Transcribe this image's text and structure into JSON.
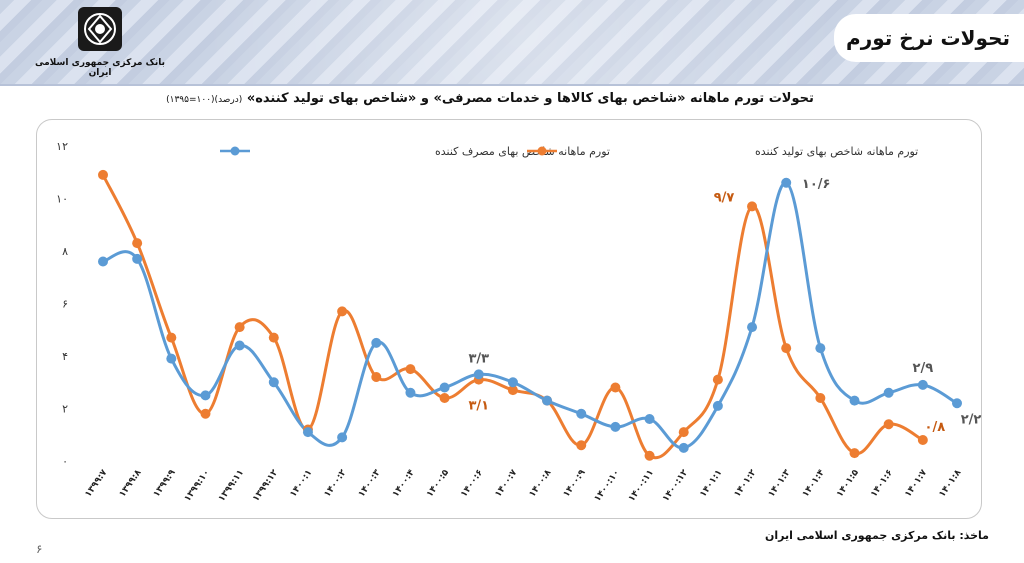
{
  "header": {
    "slide_title": "تحولات نرخ تورم",
    "bank_name": "بانک مرکزی جمهوری اسلامی ایران"
  },
  "chart_heading": {
    "main": "تحولات تورم ماهانه «شاخص بهای کالاها و خدمات مصرفی» و «شاخص بهای تولید کننده»",
    "note": "(درصد)(۱۰۰=۱۳۹۵)"
  },
  "footer": {
    "source": "ماخذ: بانک مرکزی جمهوری اسلامی ایران",
    "page_number": "۶"
  },
  "colors": {
    "cpi": "#5b9bd5",
    "ppi": "#ed7d31",
    "cpi_label": "#555555",
    "ppi_label": "#c55a11"
  },
  "chart_data": {
    "type": "line",
    "categories": [
      "۱۳۹۹:۷",
      "۱۳۹۹:۸",
      "۱۳۹۹:۹",
      "۱۳۹۹:۱۰",
      "۱۳۹۹:۱۱",
      "۱۳۹۹:۱۲",
      "۱۴۰۰:۱",
      "۱۴۰۰:۲",
      "۱۴۰۰:۳",
      "۱۴۰۰:۴",
      "۱۴۰۰:۵",
      "۱۴۰۰:۶",
      "۱۴۰۰:۷",
      "۱۴۰۰:۸",
      "۱۴۰۰:۹",
      "۱۴۰۰:۱۰",
      "۱۴۰۰:۱۱",
      "۱۴۰۰:۱۲",
      "۱۴۰۱:۱",
      "۱۴۰۱:۲",
      "۱۴۰۱:۳",
      "۱۴۰۱:۴",
      "۱۴۰۱:۵",
      "۱۴۰۱:۶",
      "۱۴۰۱:۷",
      "۱۴۰۱:۸"
    ],
    "series": [
      {
        "name": "تورم ماهانه شاخص بهای مصرف کننده",
        "values": [
          7.6,
          7.7,
          3.9,
          2.5,
          4.4,
          3.0,
          1.1,
          0.9,
          4.5,
          2.6,
          2.8,
          3.3,
          3.0,
          2.3,
          1.8,
          1.3,
          1.6,
          0.5,
          2.1,
          5.1,
          10.6,
          4.3,
          2.3,
          2.6,
          2.9,
          2.2
        ]
      },
      {
        "name": "تورم ماهانه شاخص بهای تولید کننده",
        "values": [
          10.9,
          8.3,
          4.7,
          1.8,
          5.1,
          4.7,
          1.2,
          5.7,
          3.2,
          3.5,
          2.4,
          3.1,
          2.7,
          2.3,
          0.6,
          2.8,
          0.2,
          1.1,
          3.1,
          9.7,
          4.3,
          2.4,
          0.3,
          1.4,
          0.8,
          null
        ]
      }
    ],
    "y_ticks": [
      "۰",
      "۲",
      "۴",
      "۶",
      "۸",
      "۱۰",
      "۱۲"
    ],
    "ylim": [
      0,
      12
    ],
    "grid": false,
    "legend_position": "top",
    "annotations": [
      {
        "series": 0,
        "index": 11,
        "text": "۳/۳"
      },
      {
        "series": 1,
        "index": 11,
        "text": "۳/۱"
      },
      {
        "series": 1,
        "index": 19,
        "text": "۹/۷"
      },
      {
        "series": 0,
        "index": 20,
        "text": "۱۰/۶"
      },
      {
        "series": 0,
        "index": 24,
        "text": "۲/۹"
      },
      {
        "series": 0,
        "index": 25,
        "text": "۲/۲"
      },
      {
        "series": 1,
        "index": 24,
        "text": "۰/۸"
      }
    ]
  }
}
